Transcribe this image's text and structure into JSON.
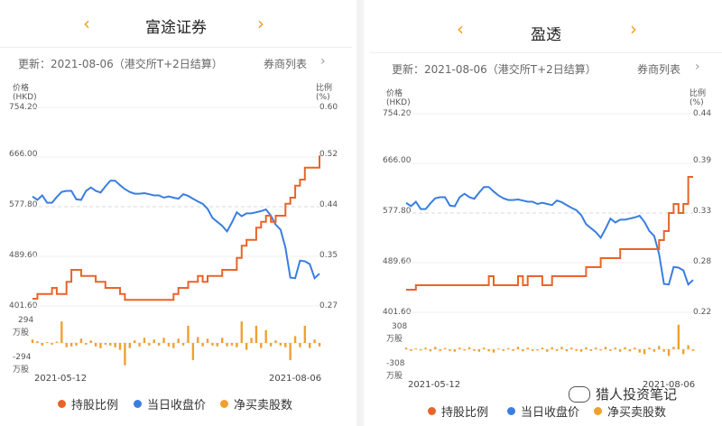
{
  "colors": {
    "accent": "#f29c1f",
    "holding": "#e8642a",
    "close": "#3a7ee0",
    "net": "#f0a030"
  },
  "panels": [
    {
      "title": "富途证券",
      "update": "更新：2021-08-06（港交所T+2日结算）",
      "broker_list": "券商列表",
      "y_left_label": [
        "价格",
        "(HKD)"
      ],
      "y_right_label": [
        "比例",
        "(%)"
      ],
      "y_left_ticks": [
        "754.20",
        "666.00",
        "577.80",
        "489.60",
        "401.60"
      ],
      "y_right_ticks": [
        "0.60",
        "0.52",
        "0.44",
        "0.35",
        "0.27"
      ],
      "bar_ticks": {
        "top": "294",
        "top_unit": "万股",
        "bottom": "-294",
        "bottom_unit": "万股"
      },
      "x_start": "2021-05-12",
      "x_end": "2021-08-06",
      "chart_data": {
        "type": "line",
        "y_left_range": [
          401.6,
          754.2
        ],
        "y_right_range": [
          0.27,
          0.6
        ],
        "close": [
          596,
          590,
          598,
          585,
          585,
          595,
          604,
          606,
          606,
          591,
          590,
          606,
          612,
          606,
          603,
          614,
          624,
          624,
          616,
          609,
          604,
          601,
          601,
          602,
          600,
          598,
          598,
          594,
          596,
          594,
          592,
          600,
          597,
          592,
          587,
          583,
          574,
          558,
          551,
          544,
          534,
          550,
          568,
          561,
          566,
          566,
          568,
          570,
          573,
          562,
          546,
          537,
          505,
          452,
          451,
          482,
          481,
          476,
          451,
          459
        ],
        "holding": [
          0.282,
          0.29,
          0.29,
          0.29,
          0.3,
          0.29,
          0.29,
          0.31,
          0.33,
          0.33,
          0.32,
          0.32,
          0.32,
          0.31,
          0.31,
          0.3,
          0.3,
          0.3,
          0.29,
          0.28,
          0.28,
          0.28,
          0.28,
          0.28,
          0.28,
          0.28,
          0.28,
          0.28,
          0.28,
          0.29,
          0.3,
          0.3,
          0.31,
          0.31,
          0.32,
          0.31,
          0.32,
          0.32,
          0.32,
          0.33,
          0.33,
          0.33,
          0.35,
          0.37,
          0.38,
          0.38,
          0.4,
          0.41,
          0.42,
          0.41,
          0.42,
          0.42,
          0.44,
          0.45,
          0.47,
          0.48,
          0.5,
          0.5,
          0.5,
          0.52
        ],
        "net": [
          40,
          20,
          -30,
          10,
          -20,
          15,
          250,
          -50,
          -40,
          -30,
          50,
          -20,
          30,
          -40,
          -60,
          -20,
          -30,
          -50,
          -80,
          -260,
          -60,
          30,
          -40,
          60,
          -30,
          40,
          -30,
          60,
          -40,
          -60,
          50,
          -30,
          200,
          -200,
          70,
          -40,
          50,
          -30,
          -40,
          60,
          -40,
          -30,
          -50,
          250,
          -80,
          60,
          200,
          -60,
          150,
          -40,
          30,
          -30,
          -50,
          -200,
          80,
          -50,
          200,
          -60,
          40,
          -40
        ]
      }
    },
    {
      "title": "盈透",
      "update": "更新：2021-08-06（港交所T+2日结算）",
      "broker_list": "券商列表",
      "y_left_label": [
        "价格",
        "(HKD)"
      ],
      "y_right_label": [
        "比例",
        "(%)"
      ],
      "y_left_ticks": [
        "754.20",
        "666.00",
        "577.80",
        "489.60",
        "401.60"
      ],
      "y_right_ticks": [
        "0.44",
        "0.39",
        "0.33",
        "0.28",
        "0.22"
      ],
      "bar_ticks": {
        "top": "308",
        "top_unit": "万股",
        "bottom": "-308",
        "bottom_unit": "万股"
      },
      "x_start": "2021-05-12",
      "x_end": "2021-08-06",
      "chart_data": {
        "type": "line",
        "y_left_range": [
          401.6,
          754.2
        ],
        "y_right_range": [
          0.22,
          0.44
        ],
        "close": [
          596,
          590,
          598,
          585,
          585,
          595,
          604,
          606,
          606,
          591,
          590,
          606,
          612,
          606,
          603,
          614,
          624,
          624,
          616,
          609,
          604,
          601,
          601,
          602,
          600,
          598,
          598,
          594,
          596,
          594,
          592,
          600,
          597,
          592,
          587,
          583,
          574,
          558,
          551,
          544,
          534,
          550,
          568,
          561,
          566,
          566,
          568,
          570,
          573,
          562,
          546,
          537,
          505,
          452,
          451,
          482,
          481,
          476,
          451,
          459
        ],
        "holding": [
          0.245,
          0.245,
          0.25,
          0.25,
          0.25,
          0.25,
          0.25,
          0.25,
          0.25,
          0.25,
          0.25,
          0.25,
          0.25,
          0.25,
          0.25,
          0.25,
          0.25,
          0.26,
          0.25,
          0.25,
          0.25,
          0.25,
          0.25,
          0.26,
          0.25,
          0.26,
          0.26,
          0.26,
          0.25,
          0.25,
          0.26,
          0.26,
          0.26,
          0.26,
          0.26,
          0.26,
          0.26,
          0.27,
          0.27,
          0.27,
          0.28,
          0.28,
          0.28,
          0.28,
          0.29,
          0.29,
          0.29,
          0.29,
          0.29,
          0.29,
          0.29,
          0.29,
          0.3,
          0.31,
          0.33,
          0.34,
          0.33,
          0.34,
          0.37,
          0.37
        ],
        "net": [
          20,
          -20,
          10,
          -15,
          20,
          -25,
          30,
          -20,
          15,
          -20,
          -30,
          20,
          -15,
          25,
          -20,
          -30,
          20,
          -25,
          -40,
          10,
          -20,
          15,
          -20,
          30,
          -25,
          20,
          -20,
          -15,
          20,
          -30,
          25,
          -20,
          30,
          -25,
          20,
          -20,
          -30,
          25,
          -20,
          20,
          -15,
          30,
          -20,
          20,
          -30,
          25,
          -25,
          20,
          -40,
          -60,
          20,
          -30,
          40,
          -30,
          -80,
          30,
          300,
          -60,
          50,
          -20
        ]
      }
    }
  ],
  "legend": [
    {
      "label": "持股比例",
      "color": "#e8642a"
    },
    {
      "label": "当日收盘价",
      "color": "#3a7ee0"
    },
    {
      "label": "净买卖股数",
      "color": "#f0a030"
    }
  ],
  "watermark": "猎人投资笔记"
}
